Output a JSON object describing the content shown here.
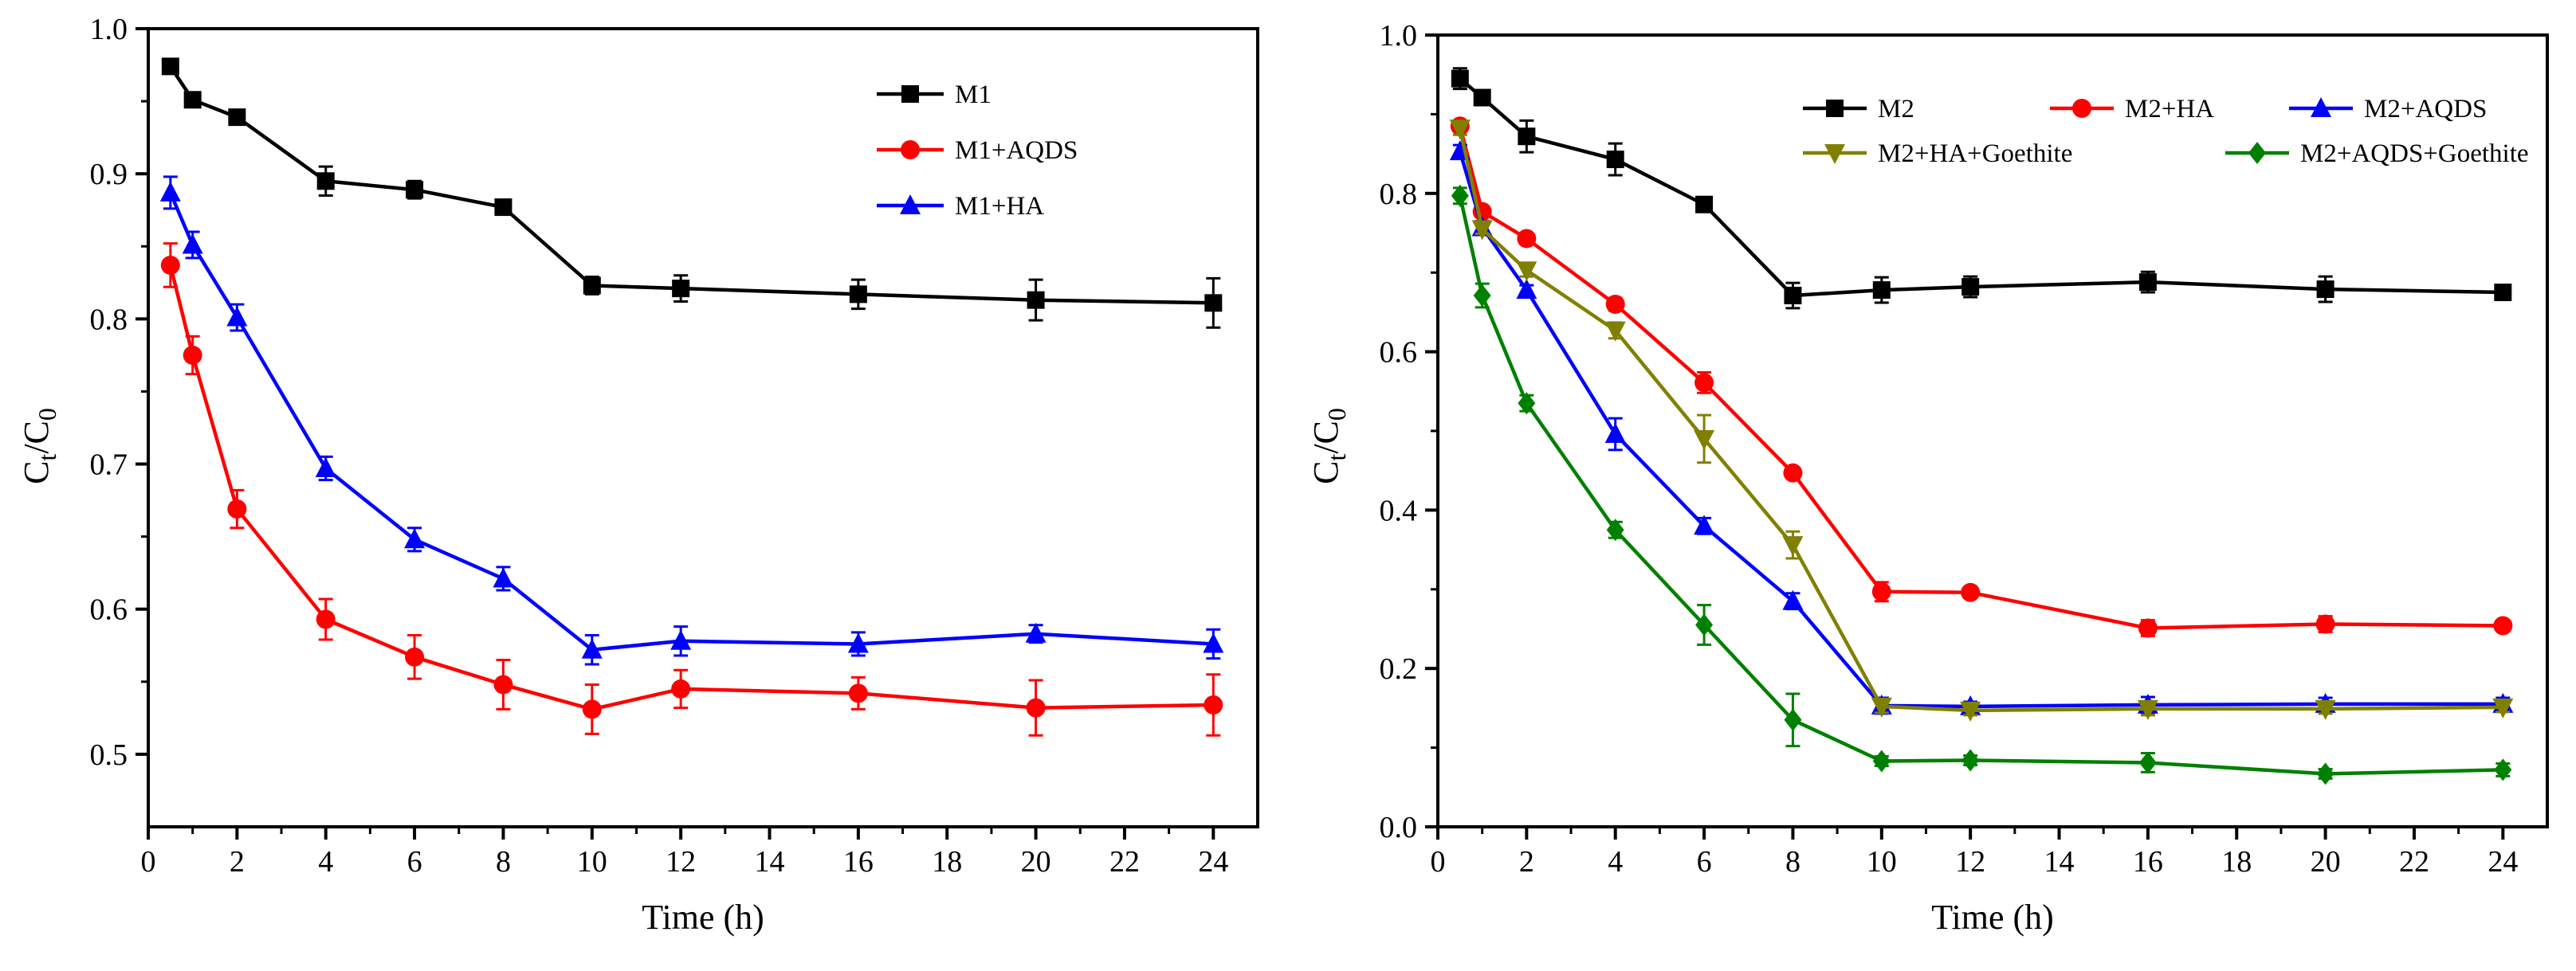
{
  "chart_data": [
    {
      "type": "line",
      "xlabel": "Time  (h)",
      "ylabel": {
        "main": "C",
        "sub1": "t",
        "sep": "/C",
        "sub2": "0"
      },
      "xlim": [
        0,
        25
      ],
      "ylim": [
        0.45,
        1.0
      ],
      "xticks": [
        0,
        2,
        4,
        6,
        8,
        10,
        12,
        14,
        16,
        18,
        20,
        22,
        24
      ],
      "yticks": [
        0.5,
        0.6,
        0.7,
        0.8,
        0.9,
        1.0
      ],
      "ytick_labels": [
        "0.5",
        "0.6",
        "0.7",
        "0.8",
        "0.9",
        "1.0"
      ],
      "legend": "top-right",
      "legend_columns": 1,
      "series": [
        {
          "name": "M1",
          "color": "#000000",
          "marker": "square",
          "x": [
            0.5,
            1,
            2,
            4,
            6,
            8,
            10,
            12,
            16,
            20,
            24
          ],
          "y": [
            0.974,
            0.951,
            0.939,
            0.895,
            0.889,
            0.877,
            0.823,
            0.821,
            0.817,
            0.813,
            0.811
          ],
          "err": [
            0.004,
            0.004,
            0.005,
            0.01,
            0.006,
            0.005,
            0.006,
            0.009,
            0.01,
            0.014,
            0.017
          ]
        },
        {
          "name": "M1+AQDS",
          "color": "#ff0000",
          "marker": "circle",
          "x": [
            0.5,
            1,
            2,
            4,
            6,
            8,
            10,
            12,
            16,
            20,
            24
          ],
          "y": [
            0.837,
            0.775,
            0.669,
            0.593,
            0.567,
            0.548,
            0.531,
            0.545,
            0.542,
            0.532,
            0.534
          ],
          "err": [
            0.015,
            0.013,
            0.013,
            0.014,
            0.015,
            0.017,
            0.017,
            0.013,
            0.011,
            0.019,
            0.021
          ]
        },
        {
          "name": "M1+HA",
          "color": "#0000ff",
          "marker": "triangle-up",
          "x": [
            0.5,
            1,
            2,
            4,
            6,
            8,
            10,
            12,
            16,
            20,
            24
          ],
          "y": [
            0.887,
            0.851,
            0.801,
            0.697,
            0.648,
            0.621,
            0.572,
            0.578,
            0.576,
            0.583,
            0.576
          ],
          "err": [
            0.011,
            0.009,
            0.009,
            0.008,
            0.008,
            0.008,
            0.01,
            0.01,
            0.008,
            0.006,
            0.01
          ]
        }
      ]
    },
    {
      "type": "line",
      "xlabel": "Time  (h)",
      "ylabel": {
        "main": "C",
        "sub1": "t",
        "sep": "/C",
        "sub2": "0"
      },
      "xlim": [
        0,
        25
      ],
      "ylim": [
        0.0,
        1.0
      ],
      "xticks": [
        0,
        2,
        4,
        6,
        8,
        10,
        12,
        14,
        16,
        18,
        20,
        22,
        24
      ],
      "yticks": [
        0.0,
        0.2,
        0.4,
        0.6,
        0.8,
        1.0
      ],
      "ytick_labels": [
        "0.0",
        "0.2",
        "0.4",
        "0.6",
        "0.8",
        "1.0"
      ],
      "legend": "top-right",
      "legend_columns": 3,
      "series": [
        {
          "name": "M2",
          "color": "#000000",
          "marker": "square",
          "x": [
            0.5,
            1,
            2,
            4,
            6,
            8,
            10,
            12,
            16,
            20,
            24
          ],
          "y": [
            0.945,
            0.921,
            0.872,
            0.843,
            0.786,
            0.671,
            0.678,
            0.682,
            0.688,
            0.679,
            0.675
          ],
          "err": [
            0.013,
            0.006,
            0.02,
            0.02,
            0.008,
            0.016,
            0.016,
            0.013,
            0.013,
            0.016,
            0.008
          ]
        },
        {
          "name": "M2+HA",
          "color": "#ff0000",
          "marker": "circle",
          "x": [
            0.5,
            1,
            2,
            4,
            6,
            8,
            10,
            12,
            16,
            20,
            24
          ],
          "y": [
            0.885,
            0.777,
            0.743,
            0.66,
            0.561,
            0.447,
            0.297,
            0.296,
            0.251,
            0.256,
            0.254
          ],
          "err": [
            0.006,
            0.006,
            0.006,
            0.008,
            0.013,
            0.006,
            0.012,
            0.006,
            0.01,
            0.01,
            0.006
          ]
        },
        {
          "name": "M2+AQDS",
          "color": "#0000ff",
          "marker": "triangle-up",
          "x": [
            0.5,
            1,
            2,
            4,
            6,
            8,
            10,
            12,
            16,
            20,
            24
          ],
          "y": [
            0.853,
            0.757,
            0.678,
            0.496,
            0.38,
            0.285,
            0.153,
            0.152,
            0.154,
            0.155,
            0.155
          ],
          "err": [
            0.008,
            0.008,
            0.006,
            0.02,
            0.01,
            0.01,
            0.01,
            0.006,
            0.01,
            0.008,
            0.008
          ]
        },
        {
          "name": "M2+HA+Goethite",
          "color": "#808000",
          "marker": "triangle-down",
          "x": [
            0.5,
            1,
            2,
            4,
            6,
            8,
            10,
            12,
            16,
            20,
            24
          ],
          "y": [
            0.882,
            0.755,
            0.703,
            0.627,
            0.49,
            0.356,
            0.152,
            0.147,
            0.149,
            0.149,
            0.151
          ],
          "err": [
            0.008,
            0.006,
            0.008,
            0.01,
            0.03,
            0.017,
            0.008,
            0.006,
            0.008,
            0.006,
            0.006
          ]
        },
        {
          "name": "M2+AQDS+Goethite",
          "color": "#008000",
          "marker": "diamond",
          "x": [
            0.5,
            1,
            2,
            4,
            6,
            8,
            10,
            12,
            16,
            20,
            24
          ],
          "y": [
            0.797,
            0.671,
            0.535,
            0.375,
            0.255,
            0.135,
            0.083,
            0.084,
            0.081,
            0.067,
            0.072
          ],
          "err": [
            0.01,
            0.015,
            0.01,
            0.01,
            0.025,
            0.033,
            0.006,
            0.006,
            0.012,
            0.006,
            0.008
          ]
        }
      ]
    }
  ]
}
